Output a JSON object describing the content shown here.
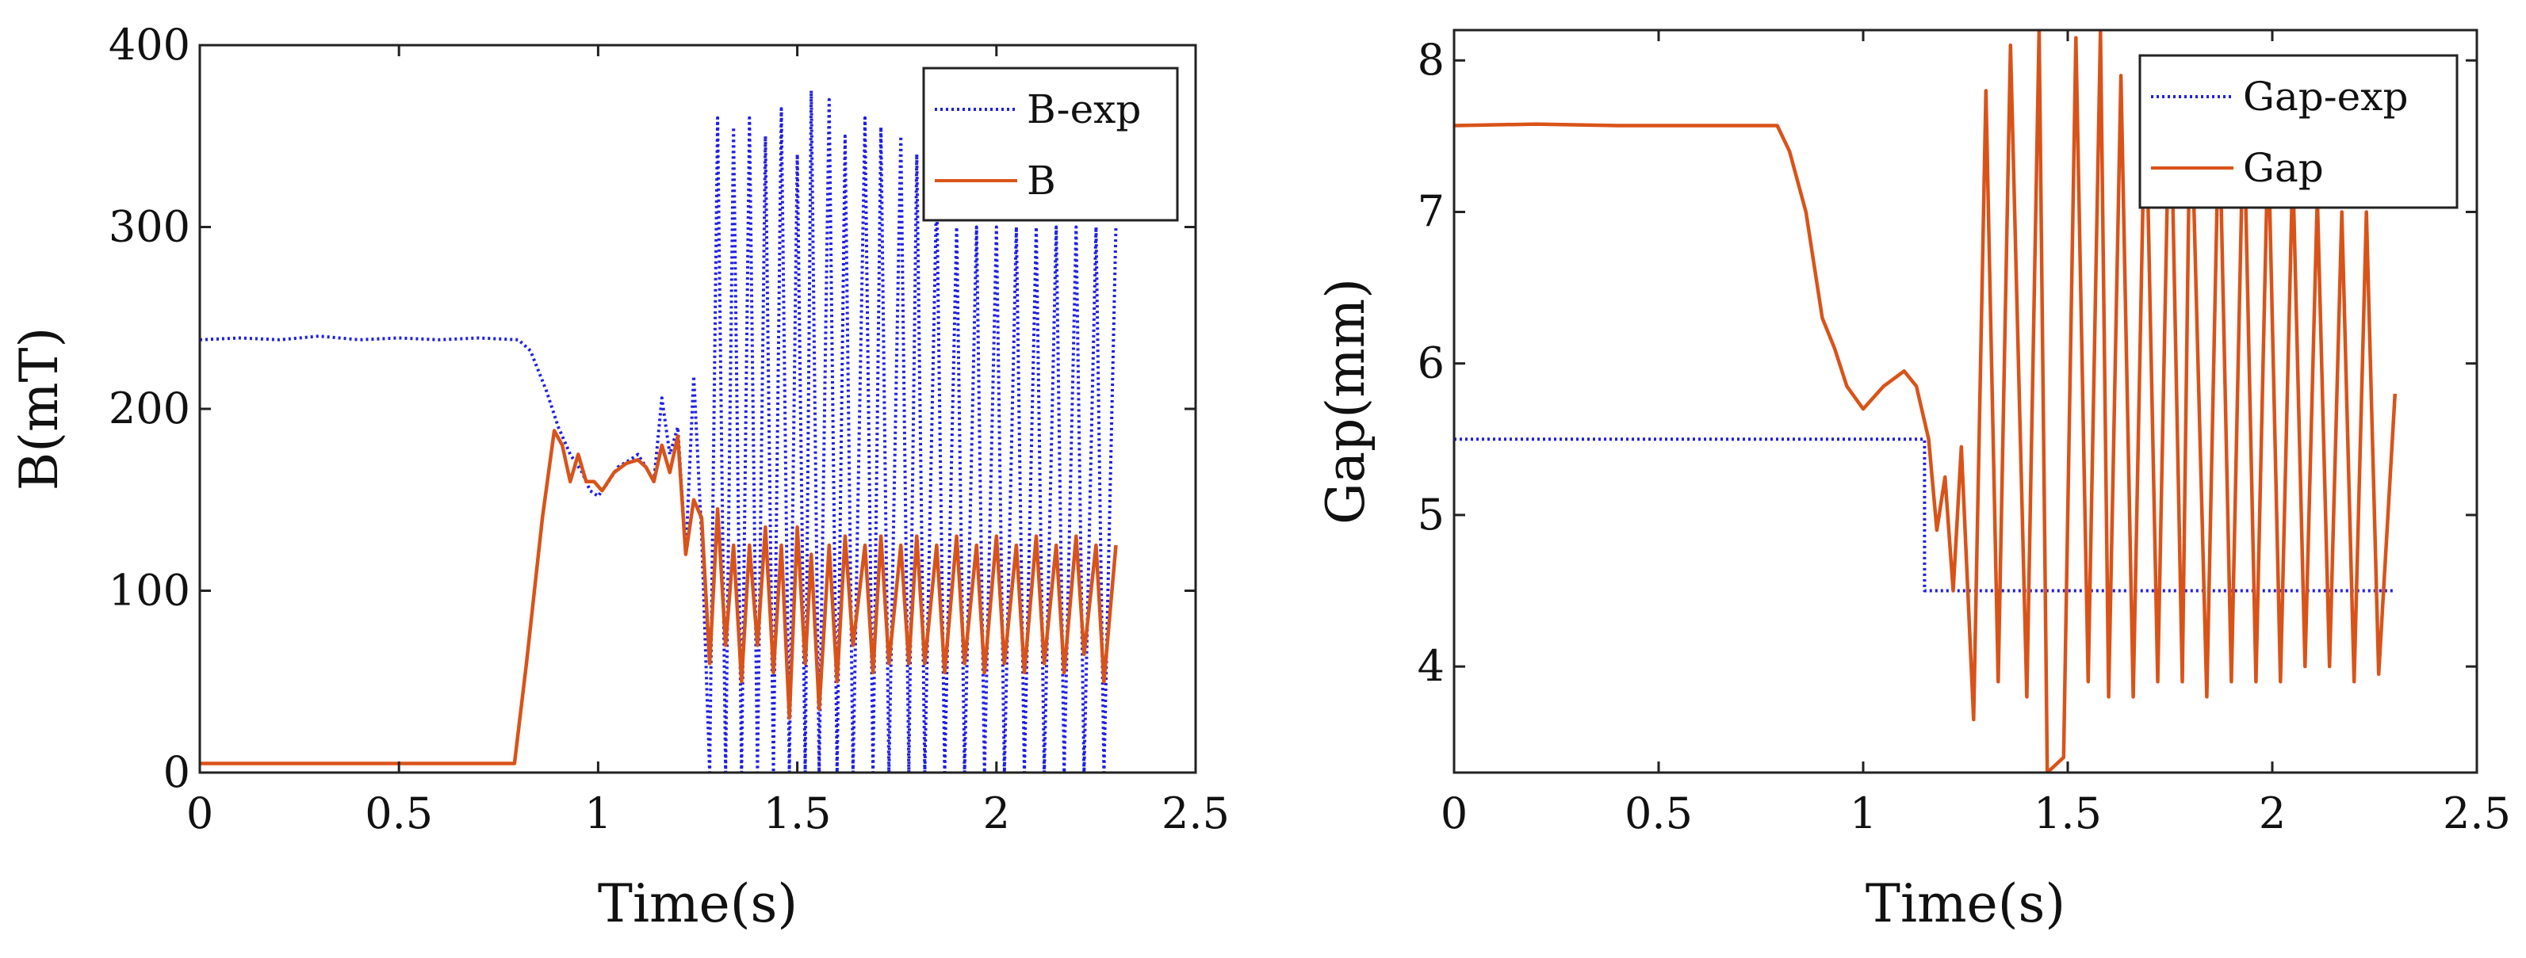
{
  "chart_data": [
    {
      "type": "line",
      "title": "",
      "xlabel": "Time(s)",
      "ylabel": "B(mT)",
      "xlim": [
        0,
        2.5
      ],
      "ylim": [
        0,
        400
      ],
      "xticks": [
        "0",
        "0.5",
        "1",
        "1.5",
        "2",
        "2.5"
      ],
      "yticks": [
        "0",
        "100",
        "200",
        "300",
        "400"
      ],
      "grid": false,
      "legend_position": "top-right",
      "series": [
        {
          "name": "B-exp",
          "color": "#1f1fe6",
          "style": "dotted",
          "points": [
            [
              0,
              238
            ],
            [
              0.1,
              239
            ],
            [
              0.2,
              238
            ],
            [
              0.3,
              240
            ],
            [
              0.4,
              238
            ],
            [
              0.5,
              239
            ],
            [
              0.6,
              238
            ],
            [
              0.7,
              239
            ],
            [
              0.8,
              238
            ],
            [
              0.83,
              232
            ],
            [
              0.87,
              210
            ],
            [
              0.9,
              190
            ],
            [
              0.93,
              175
            ],
            [
              0.96,
              165
            ],
            [
              0.98,
              155
            ],
            [
              1.0,
              152
            ],
            [
              1.02,
              158
            ],
            [
              1.05,
              168
            ],
            [
              1.08,
              172
            ],
            [
              1.1,
              175
            ],
            [
              1.12,
              168
            ],
            [
              1.14,
              160
            ],
            [
              1.16,
              206
            ],
            [
              1.18,
              175
            ],
            [
              1.2,
              190
            ],
            [
              1.22,
              120
            ],
            [
              1.24,
              218
            ],
            [
              1.26,
              130
            ],
            [
              1.28,
              0
            ],
            [
              1.3,
              360
            ],
            [
              1.32,
              0
            ],
            [
              1.34,
              355
            ],
            [
              1.36,
              0
            ],
            [
              1.38,
              360
            ],
            [
              1.4,
              0
            ],
            [
              1.42,
              350
            ],
            [
              1.44,
              0
            ],
            [
              1.46,
              365
            ],
            [
              1.48,
              0
            ],
            [
              1.5,
              340
            ],
            [
              1.52,
              0
            ],
            [
              1.535,
              375
            ],
            [
              1.555,
              0
            ],
            [
              1.58,
              370
            ],
            [
              1.6,
              0
            ],
            [
              1.62,
              350
            ],
            [
              1.64,
              0
            ],
            [
              1.67,
              360
            ],
            [
              1.69,
              0
            ],
            [
              1.71,
              355
            ],
            [
              1.73,
              0
            ],
            [
              1.76,
              350
            ],
            [
              1.78,
              0
            ],
            [
              1.8,
              340
            ],
            [
              1.82,
              0
            ],
            [
              1.85,
              320
            ],
            [
              1.87,
              0
            ],
            [
              1.9,
              300
            ],
            [
              1.92,
              0
            ],
            [
              1.95,
              300
            ],
            [
              1.97,
              0
            ],
            [
              2.0,
              300
            ],
            [
              2.02,
              0
            ],
            [
              2.05,
              300
            ],
            [
              2.07,
              0
            ],
            [
              2.1,
              300
            ],
            [
              2.12,
              0
            ],
            [
              2.15,
              300
            ],
            [
              2.17,
              0
            ],
            [
              2.2,
              300
            ],
            [
              2.22,
              0
            ],
            [
              2.25,
              300
            ],
            [
              2.27,
              0
            ],
            [
              2.3,
              300
            ]
          ]
        },
        {
          "name": "B",
          "color": "#d95319",
          "style": "solid",
          "points": [
            [
              0,
              5
            ],
            [
              0.2,
              5
            ],
            [
              0.4,
              5
            ],
            [
              0.6,
              5
            ],
            [
              0.79,
              5
            ],
            [
              0.82,
              60
            ],
            [
              0.86,
              140
            ],
            [
              0.89,
              188
            ],
            [
              0.91,
              180
            ],
            [
              0.93,
              160
            ],
            [
              0.95,
              175
            ],
            [
              0.97,
              160
            ],
            [
              0.99,
              160
            ],
            [
              1.01,
              155
            ],
            [
              1.04,
              165
            ],
            [
              1.07,
              170
            ],
            [
              1.1,
              172
            ],
            [
              1.12,
              168
            ],
            [
              1.14,
              160
            ],
            [
              1.16,
              180
            ],
            [
              1.18,
              165
            ],
            [
              1.2,
              185
            ],
            [
              1.22,
              120
            ],
            [
              1.24,
              150
            ],
            [
              1.26,
              140
            ],
            [
              1.28,
              60
            ],
            [
              1.3,
              145
            ],
            [
              1.32,
              70
            ],
            [
              1.34,
              125
            ],
            [
              1.36,
              50
            ],
            [
              1.38,
              125
            ],
            [
              1.4,
              70
            ],
            [
              1.42,
              135
            ],
            [
              1.44,
              55
            ],
            [
              1.46,
              125
            ],
            [
              1.48,
              30
            ],
            [
              1.5,
              135
            ],
            [
              1.52,
              60
            ],
            [
              1.535,
              120
            ],
            [
              1.555,
              35
            ],
            [
              1.58,
              125
            ],
            [
              1.6,
              50
            ],
            [
              1.62,
              130
            ],
            [
              1.64,
              70
            ],
            [
              1.67,
              125
            ],
            [
              1.69,
              55
            ],
            [
              1.71,
              130
            ],
            [
              1.73,
              60
            ],
            [
              1.76,
              125
            ],
            [
              1.78,
              60
            ],
            [
              1.8,
              130
            ],
            [
              1.82,
              60
            ],
            [
              1.85,
              125
            ],
            [
              1.87,
              55
            ],
            [
              1.9,
              130
            ],
            [
              1.92,
              60
            ],
            [
              1.95,
              125
            ],
            [
              1.97,
              55
            ],
            [
              2.0,
              130
            ],
            [
              2.02,
              60
            ],
            [
              2.05,
              125
            ],
            [
              2.07,
              55
            ],
            [
              2.1,
              130
            ],
            [
              2.12,
              60
            ],
            [
              2.15,
              125
            ],
            [
              2.17,
              55
            ],
            [
              2.2,
              130
            ],
            [
              2.22,
              65
            ],
            [
              2.25,
              125
            ],
            [
              2.27,
              50
            ],
            [
              2.3,
              125
            ]
          ]
        }
      ]
    },
    {
      "type": "line",
      "title": "",
      "xlabel": "Time(s)",
      "ylabel": "Gap(mm)",
      "xlim": [
        0,
        2.5
      ],
      "ylim": [
        3.3,
        8.2
      ],
      "xticks": [
        "0",
        "0.5",
        "1",
        "1.5",
        "2",
        "2.5"
      ],
      "yticks": [
        "4",
        "5",
        "6",
        "7",
        "8"
      ],
      "grid": false,
      "legend_position": "top-right",
      "series": [
        {
          "name": "Gap-exp",
          "color": "#1f1fe6",
          "style": "dotted",
          "points": [
            [
              0,
              5.5
            ],
            [
              1.15,
              5.5
            ],
            [
              1.15,
              4.5
            ],
            [
              2.3,
              4.5
            ]
          ]
        },
        {
          "name": "Gap",
          "color": "#d95319",
          "style": "solid",
          "points": [
            [
              0,
              7.57
            ],
            [
              0.2,
              7.58
            ],
            [
              0.4,
              7.57
            ],
            [
              0.6,
              7.57
            ],
            [
              0.79,
              7.57
            ],
            [
              0.82,
              7.4
            ],
            [
              0.86,
              7.0
            ],
            [
              0.9,
              6.3
            ],
            [
              0.93,
              6.1
            ],
            [
              0.96,
              5.85
            ],
            [
              1.0,
              5.7
            ],
            [
              1.05,
              5.85
            ],
            [
              1.1,
              5.95
            ],
            [
              1.13,
              5.85
            ],
            [
              1.16,
              5.5
            ],
            [
              1.18,
              4.9
            ],
            [
              1.2,
              5.25
            ],
            [
              1.22,
              4.5
            ],
            [
              1.24,
              5.45
            ],
            [
              1.27,
              3.65
            ],
            [
              1.3,
              7.8
            ],
            [
              1.33,
              3.9
            ],
            [
              1.36,
              8.1
            ],
            [
              1.4,
              3.8
            ],
            [
              1.43,
              8.2
            ],
            [
              1.45,
              3.3
            ],
            [
              1.49,
              3.4
            ],
            [
              1.52,
              8.15
            ],
            [
              1.55,
              3.9
            ],
            [
              1.58,
              8.2
            ],
            [
              1.6,
              3.8
            ],
            [
              1.63,
              7.9
            ],
            [
              1.66,
              3.8
            ],
            [
              1.69,
              7.9
            ],
            [
              1.72,
              3.9
            ],
            [
              1.75,
              8.0
            ],
            [
              1.78,
              3.9
            ],
            [
              1.8,
              7.9
            ],
            [
              1.84,
              3.8
            ],
            [
              1.87,
              7.7
            ],
            [
              1.9,
              3.9
            ],
            [
              1.93,
              7.7
            ],
            [
              1.96,
              3.9
            ],
            [
              1.99,
              7.5
            ],
            [
              2.02,
              3.9
            ],
            [
              2.05,
              7.3
            ],
            [
              2.08,
              4.0
            ],
            [
              2.11,
              7.1
            ],
            [
              2.14,
              4.0
            ],
            [
              2.17,
              7.0
            ],
            [
              2.2,
              3.9
            ],
            [
              2.23,
              7.0
            ],
            [
              2.26,
              3.95
            ],
            [
              2.3,
              5.8
            ]
          ]
        }
      ]
    }
  ]
}
